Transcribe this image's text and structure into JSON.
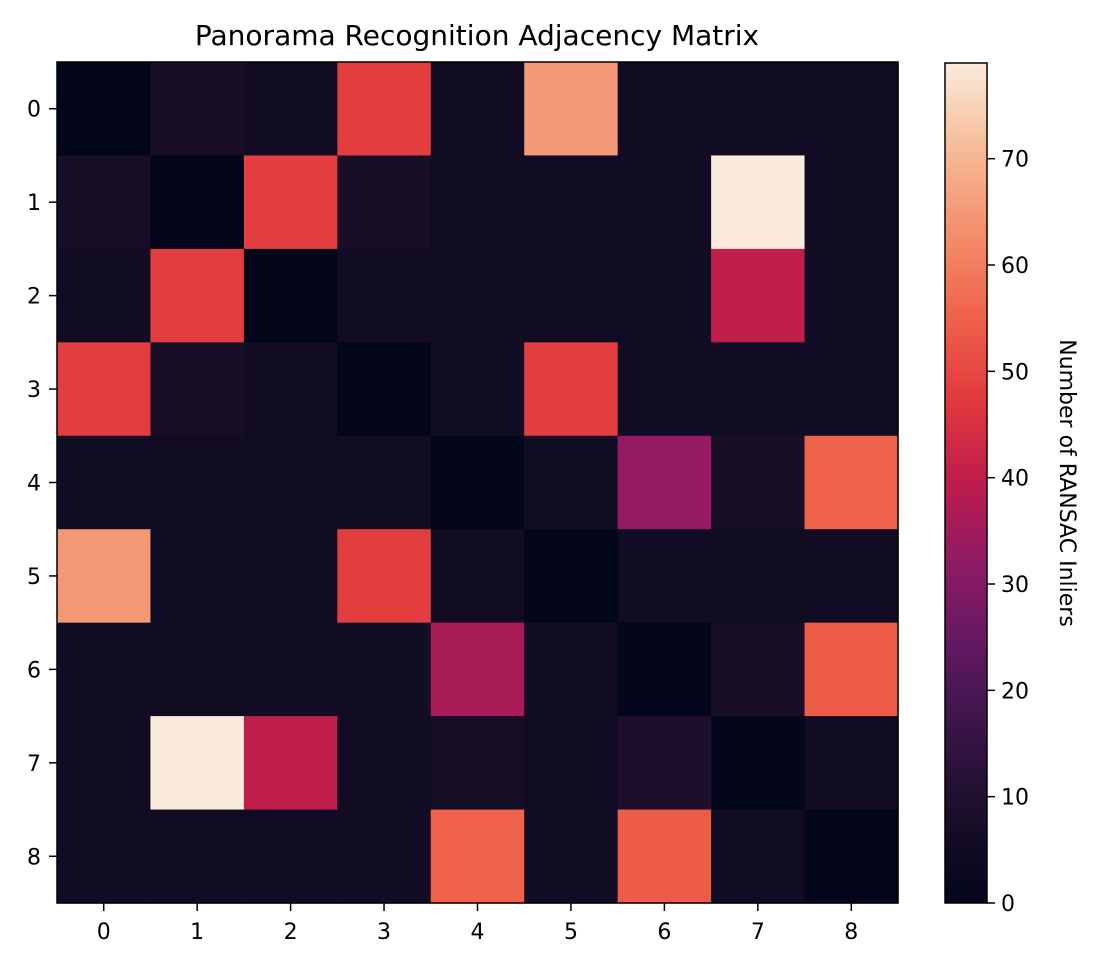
{
  "chart_data": {
    "type": "heatmap",
    "title": "Panorama Recognition Adjacency Matrix",
    "x_labels": [
      "0",
      "1",
      "2",
      "3",
      "4",
      "5",
      "6",
      "7",
      "8"
    ],
    "y_labels": [
      "0",
      "1",
      "2",
      "3",
      "4",
      "5",
      "6",
      "7",
      "8"
    ],
    "values": [
      [
        0,
        8,
        5,
        48,
        5,
        65,
        5,
        5,
        5
      ],
      [
        8,
        0,
        48,
        8,
        5,
        5,
        5,
        79,
        5
      ],
      [
        5,
        48,
        0,
        5,
        5,
        5,
        5,
        40,
        5
      ],
      [
        48,
        8,
        5,
        0,
        5,
        48,
        5,
        5,
        5
      ],
      [
        5,
        5,
        5,
        5,
        0,
        5,
        33,
        8,
        55
      ],
      [
        65,
        5,
        5,
        48,
        5,
        0,
        5,
        5,
        5
      ],
      [
        5,
        5,
        5,
        5,
        36,
        5,
        0,
        8,
        54
      ],
      [
        5,
        79,
        40,
        5,
        7,
        5,
        9,
        0,
        5
      ],
      [
        5,
        5,
        5,
        5,
        55,
        5,
        54,
        5,
        0
      ]
    ],
    "colorbar": {
      "label": "Number of RANSAC Inliers",
      "min": 0,
      "max": 79,
      "ticks": [
        0,
        10,
        20,
        30,
        40,
        50,
        60,
        70
      ],
      "colormap": "rocket"
    }
  }
}
